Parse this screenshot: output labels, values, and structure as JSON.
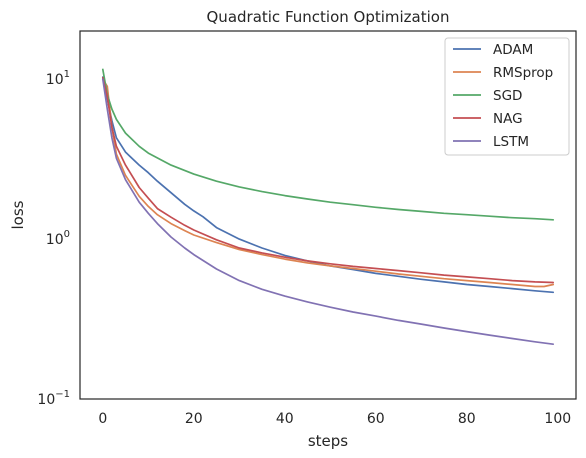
{
  "chart_data": {
    "type": "line",
    "title": "Quadratic Function Optimization",
    "xlabel": "steps",
    "ylabel": "loss",
    "xlim": [
      -5,
      104
    ],
    "ylim": [
      0.1,
      20
    ],
    "yscale": "log",
    "xticks": [
      0,
      20,
      40,
      60,
      80,
      100
    ],
    "yticks": [
      {
        "value": 0.1,
        "base": "10",
        "exp": "−1"
      },
      {
        "value": 1,
        "base": "10",
        "exp": "0"
      },
      {
        "value": 10,
        "base": "10",
        "exp": "1"
      }
    ],
    "grid": false,
    "legend_position": "top-right",
    "series": [
      {
        "name": "ADAM",
        "color": "#4c72b0",
        "x": [
          0,
          1,
          2,
          3,
          5,
          8,
          10,
          12,
          15,
          18,
          20,
          22,
          25,
          30,
          35,
          40,
          45,
          50,
          55,
          60,
          65,
          70,
          75,
          80,
          85,
          90,
          95,
          99
        ],
        "y": [
          10.3,
          7.5,
          5.5,
          4.3,
          3.5,
          2.9,
          2.6,
          2.3,
          1.95,
          1.65,
          1.5,
          1.38,
          1.18,
          1.0,
          0.88,
          0.79,
          0.73,
          0.68,
          0.645,
          0.61,
          0.585,
          0.56,
          0.54,
          0.52,
          0.505,
          0.49,
          0.475,
          0.465
        ]
      },
      {
        "name": "RMSprop",
        "color": "#dd8452",
        "x": [
          0,
          1,
          2,
          3,
          5,
          8,
          10,
          12,
          15,
          18,
          20,
          25,
          30,
          35,
          40,
          45,
          50,
          55,
          60,
          65,
          70,
          75,
          80,
          85,
          90,
          95,
          97,
          99
        ],
        "y": [
          10.0,
          9.0,
          5.0,
          3.4,
          2.5,
          1.85,
          1.6,
          1.42,
          1.25,
          1.13,
          1.06,
          0.95,
          0.86,
          0.8,
          0.75,
          0.71,
          0.68,
          0.655,
          0.63,
          0.605,
          0.585,
          0.565,
          0.55,
          0.535,
          0.52,
          0.505,
          0.505,
          0.52
        ]
      },
      {
        "name": "SGD",
        "color": "#55a868",
        "x": [
          0,
          1,
          2,
          3,
          5,
          8,
          10,
          15,
          20,
          25,
          30,
          35,
          40,
          45,
          50,
          55,
          60,
          65,
          70,
          75,
          80,
          85,
          90,
          95,
          99
        ],
        "y": [
          11.5,
          8.0,
          6.5,
          5.6,
          4.6,
          3.8,
          3.45,
          2.9,
          2.55,
          2.3,
          2.12,
          1.98,
          1.87,
          1.78,
          1.7,
          1.64,
          1.58,
          1.53,
          1.49,
          1.45,
          1.42,
          1.39,
          1.36,
          1.34,
          1.32
        ]
      },
      {
        "name": "NAG",
        "color": "#c44e52",
        "x": [
          0,
          1,
          2,
          3,
          5,
          8,
          10,
          12,
          15,
          18,
          20,
          25,
          30,
          35,
          40,
          45,
          50,
          55,
          60,
          65,
          70,
          75,
          80,
          85,
          90,
          95,
          99
        ],
        "y": [
          10.2,
          7.8,
          5.0,
          3.8,
          2.9,
          2.1,
          1.8,
          1.55,
          1.37,
          1.22,
          1.14,
          0.99,
          0.88,
          0.82,
          0.77,
          0.73,
          0.7,
          0.675,
          0.655,
          0.635,
          0.615,
          0.595,
          0.58,
          0.565,
          0.55,
          0.54,
          0.535
        ]
      },
      {
        "name": "LSTM",
        "color": "#8172b3",
        "x": [
          0,
          1,
          2,
          3,
          5,
          8,
          10,
          12,
          15,
          18,
          20,
          25,
          30,
          35,
          40,
          45,
          50,
          55,
          60,
          65,
          70,
          75,
          80,
          85,
          90,
          95,
          99
        ],
        "y": [
          10.0,
          6.5,
          4.3,
          3.2,
          2.35,
          1.7,
          1.45,
          1.25,
          1.03,
          0.88,
          0.8,
          0.65,
          0.55,
          0.485,
          0.44,
          0.405,
          0.375,
          0.35,
          0.33,
          0.31,
          0.294,
          0.278,
          0.264,
          0.251,
          0.239,
          0.228,
          0.22
        ]
      }
    ]
  }
}
